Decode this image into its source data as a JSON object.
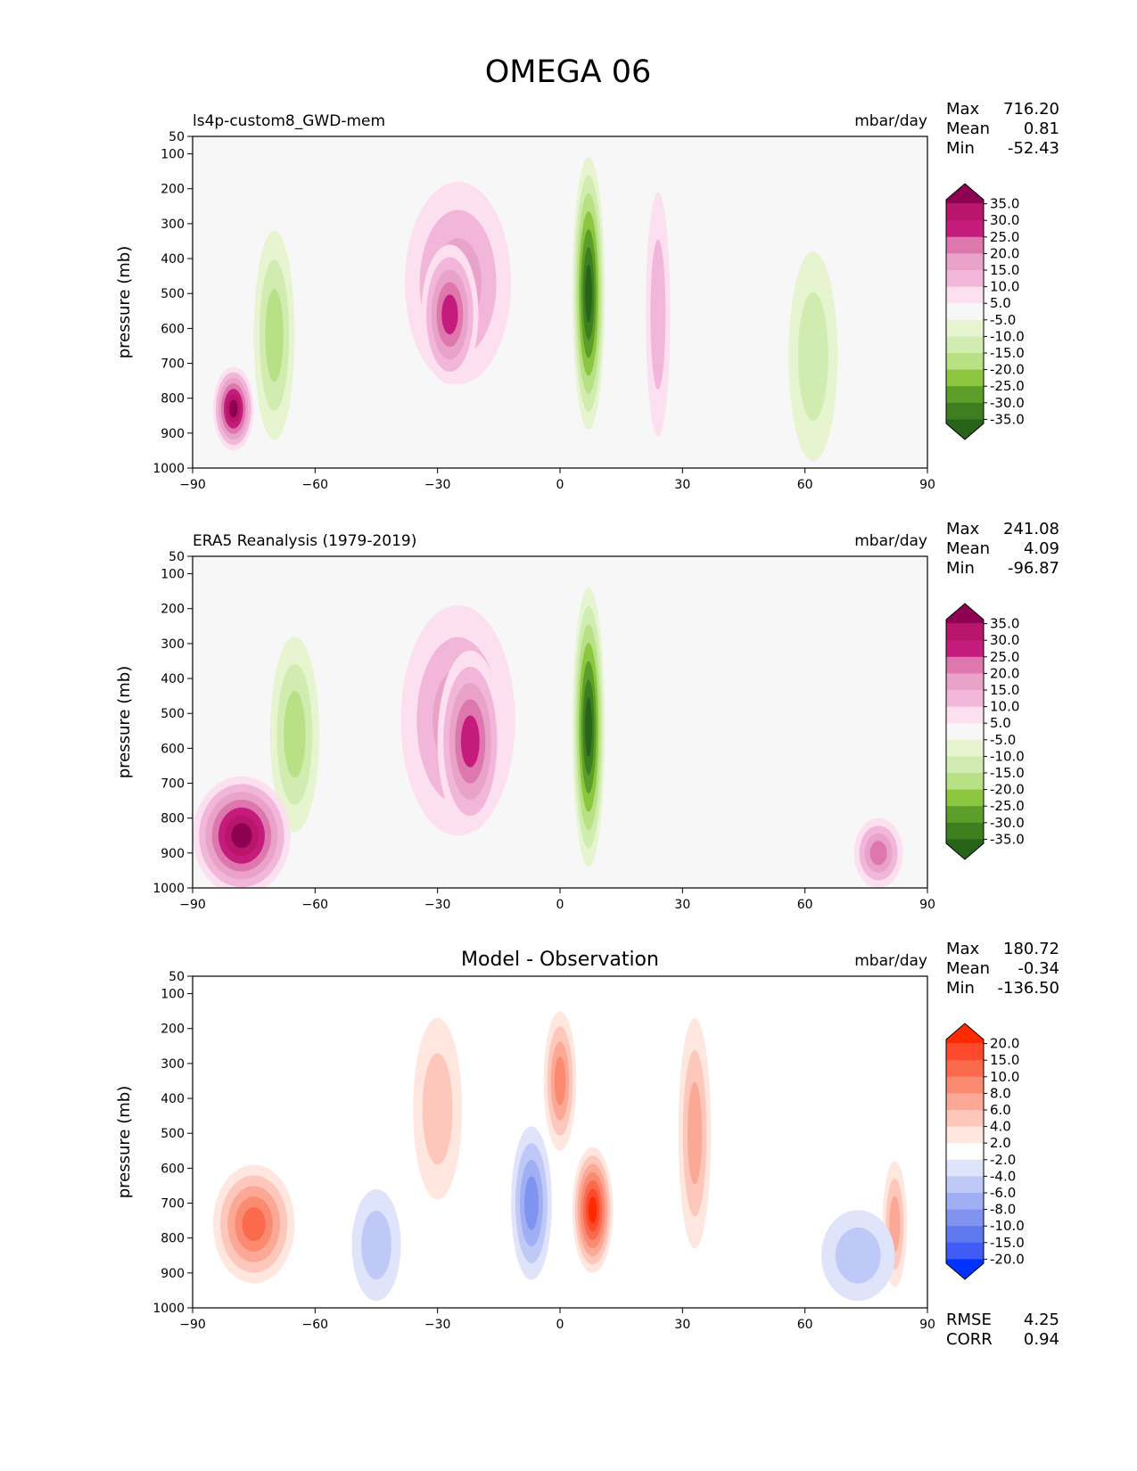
{
  "figure_title": "OMEGA 06",
  "chart_data": [
    {
      "type": "contour",
      "title": "",
      "left_label": "ls4p-custom8_GWD-mem",
      "units": "mbar/day",
      "ylabel": "pressure (mb)",
      "xlabel": "",
      "xlim": [
        -90,
        90
      ],
      "ylim": [
        1000,
        50
      ],
      "x_ticks": [
        "−90",
        "−60",
        "−30",
        "0",
        "30",
        "60",
        "90"
      ],
      "y_ticks": [
        "50",
        "100",
        "200",
        "300",
        "400",
        "500",
        "600",
        "700",
        "800",
        "900",
        "1000"
      ],
      "stats": [
        {
          "label": "Max",
          "value": "716.20"
        },
        {
          "label": "Mean",
          "value": "0.81"
        },
        {
          "label": "Min",
          "value": "-52.43"
        }
      ],
      "colorbar": {
        "labels": [
          "35.0",
          "30.0",
          "25.0",
          "20.0",
          "15.0",
          "10.0",
          "5.0",
          "-5.0",
          "-10.0",
          "-15.0",
          "-20.0",
          "-25.0",
          "-30.0",
          "-35.0"
        ],
        "colors": [
          "#8e0152",
          "#b8156b",
          "#c51b7d",
          "#de77ae",
          "#e9a3c9",
          "#f1b6da",
          "#fde0ef",
          "#f7f7f7",
          "#e6f5d0",
          "#d0ecb0",
          "#b8e186",
          "#8cc63f",
          "#5d9e2a",
          "#3d7e1f",
          "#276419"
        ]
      },
      "features": [
        {
          "x": -25,
          "p": 470,
          "rx": 13,
          "rp": 290,
          "value": 15
        },
        {
          "x": -27,
          "p": 560,
          "rx": 7,
          "rp": 200,
          "value": 22
        },
        {
          "x": 7,
          "p": 500,
          "rx": 4,
          "rp": 390,
          "value": -35
        },
        {
          "x": -70,
          "p": 620,
          "rx": 5,
          "rp": 300,
          "value": -12
        },
        {
          "x": -80,
          "p": 830,
          "rx": 5,
          "rp": 120,
          "value": 40
        },
        {
          "x": 24,
          "p": 560,
          "rx": 3,
          "rp": 350,
          "value": 6
        },
        {
          "x": 62,
          "p": 680,
          "rx": 6,
          "rp": 300,
          "value": -8
        }
      ]
    },
    {
      "type": "contour",
      "title": "",
      "left_label": "ERA5 Reanalysis (1979-2019)",
      "units": "mbar/day",
      "ylabel": "pressure (mb)",
      "xlabel": "",
      "xlim": [
        -90,
        90
      ],
      "ylim": [
        1000,
        50
      ],
      "x_ticks": [
        "−90",
        "−60",
        "−30",
        "0",
        "30",
        "60",
        "90"
      ],
      "y_ticks": [
        "50",
        "100",
        "200",
        "300",
        "400",
        "500",
        "600",
        "700",
        "800",
        "900",
        "1000"
      ],
      "stats": [
        {
          "label": "Max",
          "value": "241.08"
        },
        {
          "label": "Mean",
          "value": "4.09"
        },
        {
          "label": "Min",
          "value": "-96.87"
        }
      ],
      "colorbar": {
        "labels": [
          "35.0",
          "30.0",
          "25.0",
          "20.0",
          "15.0",
          "10.0",
          "5.0",
          "-5.0",
          "-10.0",
          "-15.0",
          "-20.0",
          "-25.0",
          "-30.0",
          "-35.0"
        ],
        "colors": [
          "#8e0152",
          "#b8156b",
          "#c51b7d",
          "#de77ae",
          "#e9a3c9",
          "#f1b6da",
          "#fde0ef",
          "#f7f7f7",
          "#e6f5d0",
          "#d0ecb0",
          "#b8e186",
          "#8cc63f",
          "#5d9e2a",
          "#3d7e1f",
          "#276419"
        ]
      },
      "features": [
        {
          "x": -25,
          "p": 520,
          "rx": 14,
          "rp": 330,
          "value": 15
        },
        {
          "x": -22,
          "p": 580,
          "rx": 8,
          "rp": 260,
          "value": 22
        },
        {
          "x": 7,
          "p": 540,
          "rx": 4,
          "rp": 400,
          "value": -35
        },
        {
          "x": -65,
          "p": 560,
          "rx": 6,
          "rp": 280,
          "value": -12
        },
        {
          "x": -78,
          "p": 850,
          "rx": 12,
          "rp": 170,
          "value": 45
        },
        {
          "x": 78,
          "p": 900,
          "rx": 6,
          "rp": 100,
          "value": 18
        }
      ]
    },
    {
      "type": "contour",
      "title": "Model - Observation",
      "left_label": "",
      "units": "mbar/day",
      "ylabel": "pressure (mb)",
      "xlabel": "",
      "xlim": [
        -90,
        90
      ],
      "ylim": [
        1000,
        50
      ],
      "x_ticks": [
        "−90",
        "−60",
        "−30",
        "0",
        "30",
        "60",
        "90"
      ],
      "y_ticks": [
        "50",
        "100",
        "200",
        "300",
        "400",
        "500",
        "600",
        "700",
        "800",
        "900",
        "1000"
      ],
      "stats": [
        {
          "label": "Max",
          "value": "180.72"
        },
        {
          "label": "Mean",
          "value": "-0.34"
        },
        {
          "label": "Min",
          "value": "-136.50"
        }
      ],
      "extra_stats": [
        {
          "label": "RMSE",
          "value": "4.25"
        },
        {
          "label": "CORR",
          "value": "0.94"
        }
      ],
      "colorbar": {
        "labels": [
          "20.0",
          "15.0",
          "10.0",
          "8.0",
          "6.0",
          "4.0",
          "2.0",
          "-2.0",
          "-4.0",
          "-6.0",
          "-8.0",
          "-10.0",
          "-15.0",
          "-20.0"
        ],
        "colors": [
          "#ff2a00",
          "#fe4a2c",
          "#fc6a4e",
          "#fa8a70",
          "#fba996",
          "#fdc8bb",
          "#ffe6de",
          "#ffffff",
          "#dfe4fb",
          "#bfc9f8",
          "#a0aef4",
          "#8093f0",
          "#6078ee",
          "#3f5cf6",
          "#0033ff"
        ]
      },
      "features": [
        {
          "x": -30,
          "p": 430,
          "rx": 6,
          "rp": 260,
          "value": 5
        },
        {
          "x": 0,
          "p": 350,
          "rx": 4,
          "rp": 200,
          "value": 8
        },
        {
          "x": 8,
          "p": 720,
          "rx": 5,
          "rp": 180,
          "value": 16
        },
        {
          "x": -7,
          "p": 700,
          "rx": 5,
          "rp": 220,
          "value": -8
        },
        {
          "x": 33,
          "p": 500,
          "rx": 4,
          "rp": 330,
          "value": 6
        },
        {
          "x": -75,
          "p": 760,
          "rx": 10,
          "rp": 170,
          "value": 12
        },
        {
          "x": -45,
          "p": 820,
          "rx": 6,
          "rp": 160,
          "value": -4
        },
        {
          "x": 82,
          "p": 760,
          "rx": 3,
          "rp": 180,
          "value": 6
        },
        {
          "x": 73,
          "p": 850,
          "rx": 9,
          "rp": 130,
          "value": -4
        }
      ]
    }
  ]
}
